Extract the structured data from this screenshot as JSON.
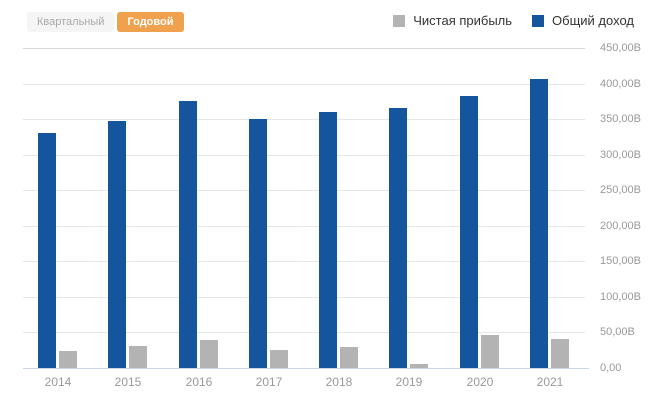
{
  "toolbar": {
    "quarterly": "Квартальный",
    "annual": "Годовой",
    "active": "Годовой"
  },
  "chart_data": {
    "type": "bar",
    "categories": [
      "2014",
      "2015",
      "2016",
      "2017",
      "2018",
      "2019",
      "2020",
      "2021"
    ],
    "series": [
      {
        "key": "net-profit",
        "name": "Чистая прибыль",
        "color": "#b3b3b3",
        "values": [
          24,
          31,
          39,
          25,
          30,
          6,
          46,
          41
        ]
      },
      {
        "key": "total-revenue",
        "name": "Общий доход",
        "color": "#15559d",
        "values": [
          330,
          348,
          375,
          350,
          360,
          366,
          383,
          406
        ]
      }
    ],
    "unit": "B",
    "ylim": [
      0,
      450
    ],
    "ytick_step": 50,
    "ytick_labels_top_to_bottom": [
      "450,00B",
      "400,00B",
      "350,00B",
      "300,00B",
      "250,00B",
      "200,00B",
      "150,00B",
      "100,00B",
      "50,00B",
      "0,00"
    ],
    "grid": true,
    "legend_position": "top-right",
    "yaxis_side": "right"
  },
  "colors": {
    "active_toggle": "#efa14e",
    "inactive_toggle_bg": "#f5f5f5",
    "bar_blue": "#15559d",
    "bar_gray": "#b3b3b3",
    "gridline": "#e6e6e6",
    "axis_line": "#ccd6eb",
    "axis_label": "#999999",
    "legend_text": "#333333"
  }
}
